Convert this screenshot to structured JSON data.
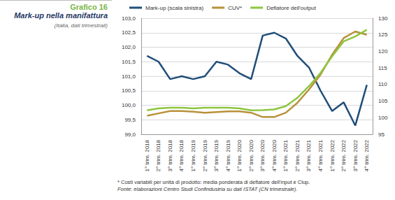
{
  "chart_data": {
    "type": "line",
    "figure_label": "Grafico 16",
    "title": "Mark-up nella manifattura",
    "subtitle": "(Italia, dati trimestrali)",
    "footnote": "* Costi variabili per unità di prodotto: media ponderata di deflatore dell'input e Clup.",
    "source": "Fonte: elaborazioni Centro Studi Confindustria su dati ISTAT (CN trimestrale).",
    "categories": [
      "1° trim. 2018",
      "2° trim. 2018",
      "3° trim. 2018",
      "4° trim. 2018",
      "1° trim. 2019",
      "2° trim. 2019",
      "3° trim. 2019",
      "4° trim. 2019",
      "1° trim. 2020",
      "2° trim. 2020",
      "3° trim. 2020",
      "4° trim. 2020",
      "1° trim. 2021",
      "2° trim. 2021",
      "3° trim. 2021",
      "4° trim. 2021",
      "1° trim. 2022",
      "2° trim. 2022",
      "3° trim. 2022",
      "4° trim. 2022"
    ],
    "series": [
      {
        "name": "Mark-up (scala sinistra)",
        "color": "#1f4e79",
        "axis": "y",
        "values": [
          101.7,
          101.5,
          100.9,
          101.0,
          100.9,
          101.0,
          101.5,
          101.4,
          101.1,
          100.9,
          102.4,
          102.5,
          102.3,
          101.7,
          101.3,
          100.5,
          99.8,
          100.1,
          99.3,
          100.7
        ]
      },
      {
        "name": "CUV*",
        "color": "#b8913a",
        "axis": "y2",
        "values": [
          100.6,
          101.3,
          102.0,
          102.0,
          101.8,
          101.5,
          101.7,
          101.9,
          101.9,
          101.5,
          100.2,
          100.2,
          101.5,
          104.5,
          108.5,
          113.0,
          119.0,
          124.0,
          126.0,
          125.0
        ]
      },
      {
        "name": "Deflatore dell'output",
        "color": "#8dc63f",
        "axis": "y2",
        "values": [
          102.2,
          102.8,
          103.0,
          103.0,
          102.8,
          103.0,
          103.0,
          103.0,
          102.8,
          102.2,
          102.3,
          102.5,
          103.5,
          106.0,
          109.5,
          113.5,
          118.5,
          123.0,
          124.5,
          126.5
        ]
      }
    ],
    "ylim": [
      99,
      103
    ],
    "yticks": [
      {
        "value": 99,
        "label": "99,0"
      },
      {
        "value": 99.5,
        "label": "99,5"
      },
      {
        "value": 100,
        "label": "100,0"
      },
      {
        "value": 100.5,
        "label": "100,5"
      },
      {
        "value": 101,
        "label": "101,0"
      },
      {
        "value": 101.5,
        "label": "101,5"
      },
      {
        "value": 102,
        "label": "102,0"
      },
      {
        "value": 102.5,
        "label": "102,5"
      },
      {
        "value": 103,
        "label": "103,0"
      }
    ],
    "y2lim": [
      95,
      130
    ],
    "y2ticks": [
      95,
      100,
      105,
      110,
      115,
      120,
      125,
      130
    ],
    "grid": true,
    "legend": "top"
  }
}
